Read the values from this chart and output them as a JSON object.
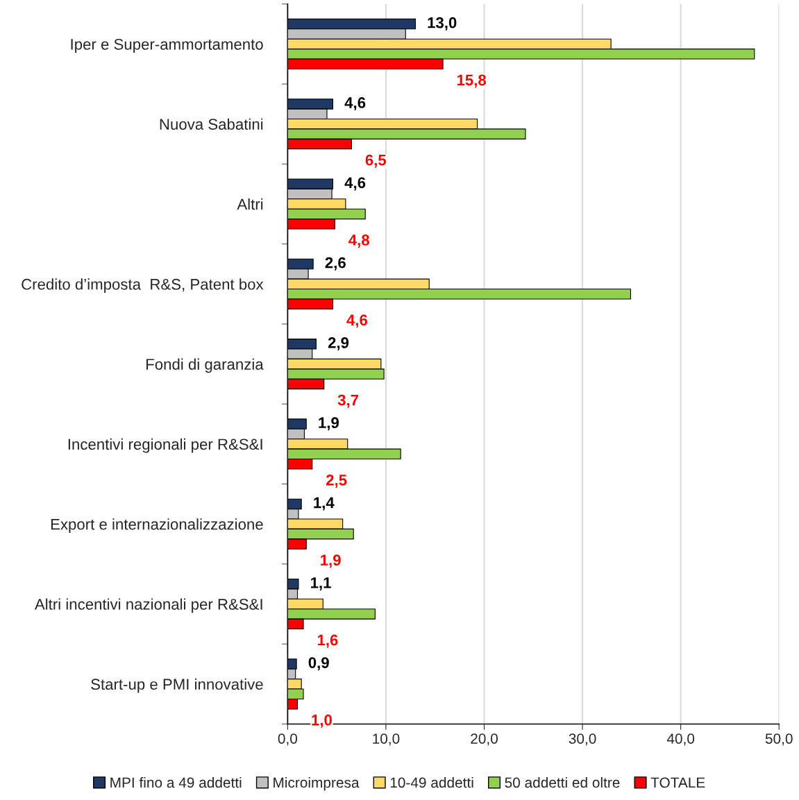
{
  "chart_data": {
    "type": "bar",
    "orientation": "horizontal",
    "categories": [
      "Iper e Super-ammortamento",
      "Nuova Sabatini",
      "Altri",
      "Credito d’imposta  R&S, Patent box",
      "Fondi di garanzia",
      "Incentivi regionali per R&S&I",
      "Export e internazionalizzazione",
      "Altri incentivi nazionali per R&S&I",
      "Start-up e PMI innovative"
    ],
    "series": [
      {
        "name": "MPI fino a 49 addetti",
        "color": "#1f3864",
        "values": [
          13.0,
          4.6,
          4.6,
          2.6,
          2.9,
          1.9,
          1.4,
          1.1,
          0.9
        ],
        "value_labels": [
          "13,0",
          "4,6",
          "4,6",
          "2,6",
          "2,9",
          "1,9",
          "1,4",
          "1,1",
          "0,9"
        ]
      },
      {
        "name": "Microimpresa",
        "color": "#c0c0c0",
        "values": [
          12.0,
          4.0,
          4.5,
          2.1,
          2.5,
          1.7,
          1.1,
          1.0,
          0.8
        ]
      },
      {
        "name": "10-49 addetti",
        "color": "#ffd966",
        "values": [
          32.9,
          19.3,
          5.9,
          14.4,
          9.5,
          6.1,
          5.6,
          3.6,
          1.4
        ]
      },
      {
        "name": "50 addetti ed oltre",
        "color": "#92d050",
        "values": [
          47.5,
          24.2,
          7.9,
          34.9,
          9.8,
          11.5,
          6.7,
          8.9,
          1.6
        ]
      },
      {
        "name": "TOTALE",
        "color": "#ff0000",
        "values": [
          15.8,
          6.5,
          4.8,
          4.6,
          3.7,
          2.5,
          1.9,
          1.6,
          1.0
        ],
        "value_labels": [
          "15,8",
          "6,5",
          "4,8",
          "4,6",
          "3,7",
          "2,5",
          "1,9",
          "1,6",
          "1,0"
        ]
      }
    ],
    "xlim": [
      0,
      50
    ],
    "xticks": [
      {
        "value": 0,
        "label": "0,0"
      },
      {
        "value": 10,
        "label": "10,0"
      },
      {
        "value": 20,
        "label": "20,0"
      },
      {
        "value": 30,
        "label": "30,0"
      },
      {
        "value": 40,
        "label": "40,0"
      },
      {
        "value": 50,
        "label": "50,0"
      }
    ],
    "grid": "x",
    "legend": "bottom"
  }
}
